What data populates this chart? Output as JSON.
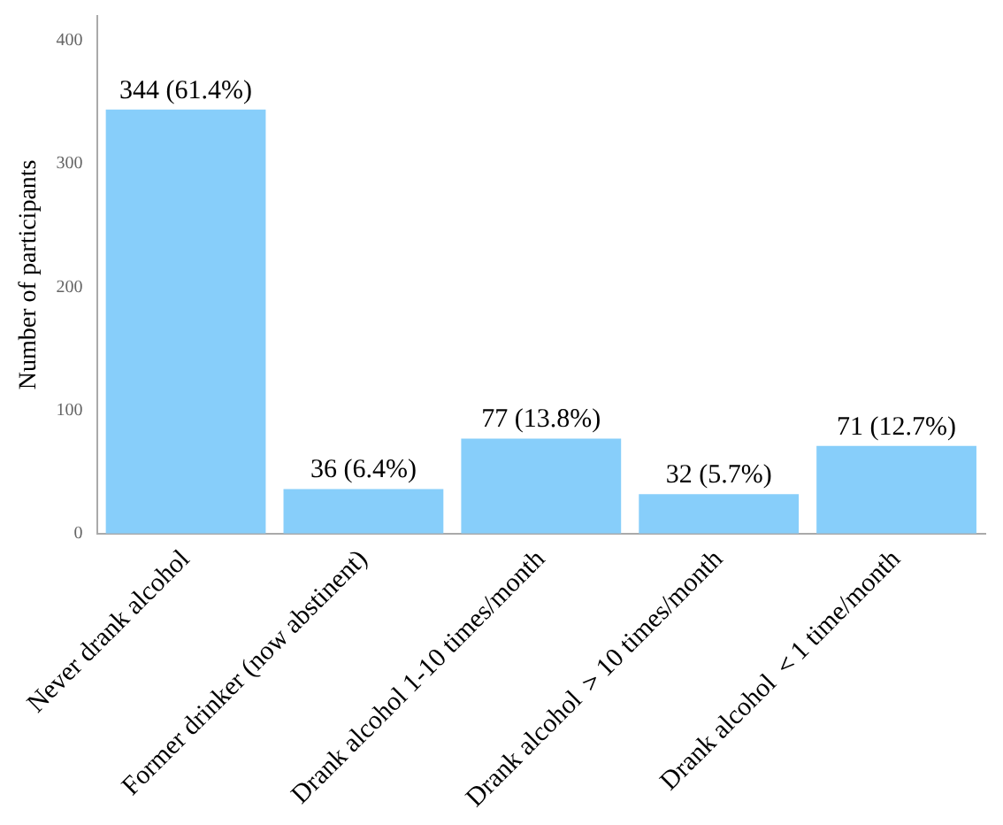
{
  "chart_data": {
    "type": "bar",
    "ylabel": "Number of participants",
    "categories": [
      "Never drank alcohol",
      "Former drinker (now abstinent)",
      "Drank alcohol 1-10 times/month",
      "Drank alcohol ＞10 times/month",
      "Drank alcohol ＜1 time/month"
    ],
    "values": [
      344,
      36,
      77,
      32,
      71
    ],
    "value_labels": [
      "344 (61.4%)",
      "36 (6.4%)",
      "77 (13.8%)",
      "32 (5.7%)",
      "71 (12.7%)"
    ],
    "color": "#87cefa",
    "ylim": [
      0,
      420
    ],
    "yticks": [
      0,
      100,
      200,
      300,
      400
    ],
    "grid": false,
    "legend": false
  }
}
